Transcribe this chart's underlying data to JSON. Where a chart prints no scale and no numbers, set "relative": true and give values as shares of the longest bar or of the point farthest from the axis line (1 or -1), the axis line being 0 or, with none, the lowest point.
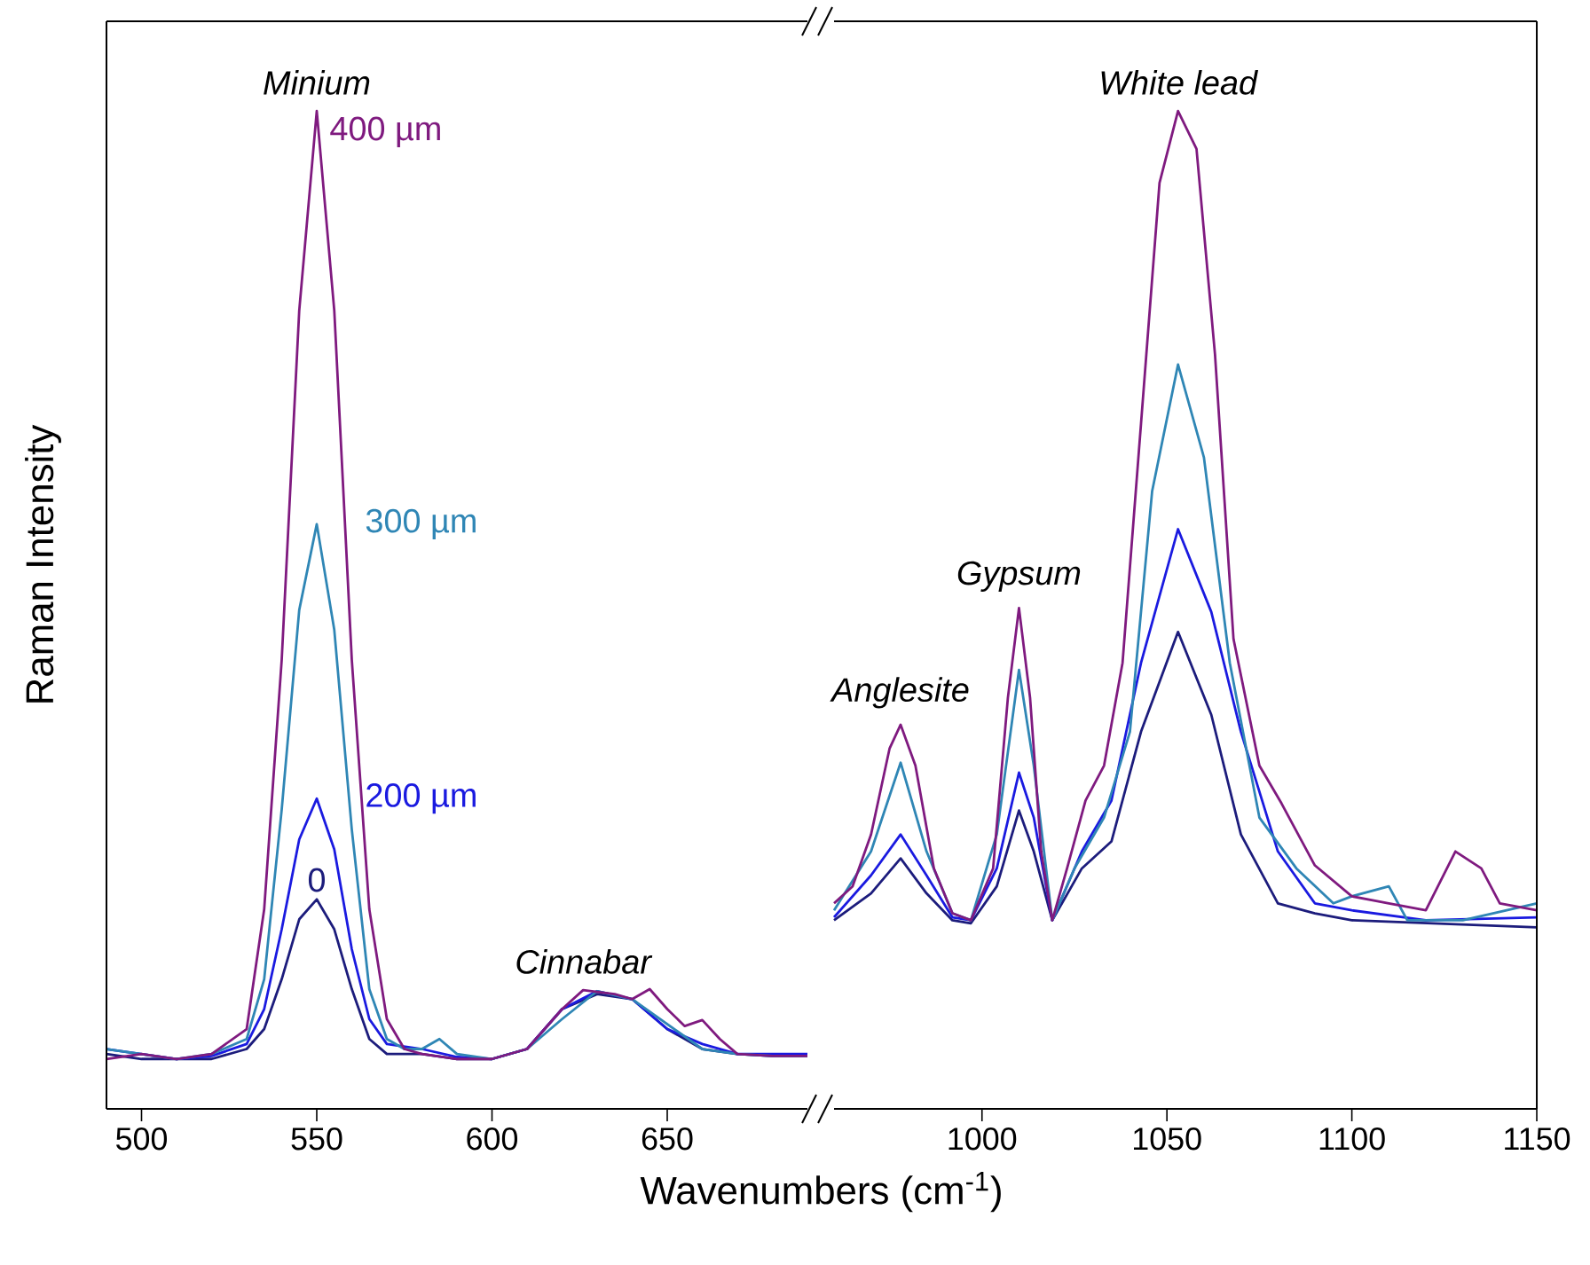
{
  "chart_data": [
    {
      "type": "line",
      "relative": true,
      "xlabel": "Wavenumbers (cm$^{-1}$)",
      "ylabel": "Raman Intensity",
      "xlim": [
        490,
        690
      ],
      "xticks": [
        500,
        550,
        600,
        650
      ],
      "annotations": [
        {
          "text": "Minium",
          "x": 550,
          "y": 1.0
        },
        {
          "text": "Cinnabar",
          "x": 626,
          "y": 0.119
        }
      ],
      "series": [
        {
          "name": "0",
          "color": "#1c1c7c",
          "x": [
            490,
            500,
            510,
            520,
            530,
            535,
            540,
            545,
            550,
            555,
            560,
            565,
            570,
            580,
            590,
            600,
            610,
            620,
            630,
            640,
            650,
            660,
            670,
            680,
            690
          ],
          "values": [
            0.055,
            0.05,
            0.05,
            0.05,
            0.06,
            0.08,
            0.13,
            0.19,
            0.21,
            0.18,
            0.12,
            0.07,
            0.055,
            0.055,
            0.05,
            0.05,
            0.06,
            0.1,
            0.115,
            0.11,
            0.08,
            0.06,
            0.055,
            0.053,
            0.053
          ]
        },
        {
          "name": "200 µm",
          "color": "#1a1ae0",
          "x": [
            490,
            500,
            510,
            520,
            530,
            535,
            540,
            545,
            550,
            555,
            560,
            565,
            570,
            580,
            590,
            600,
            610,
            620,
            630,
            640,
            650,
            660,
            670,
            680,
            690
          ],
          "values": [
            0.06,
            0.055,
            0.05,
            0.053,
            0.065,
            0.1,
            0.18,
            0.27,
            0.311,
            0.26,
            0.16,
            0.09,
            0.065,
            0.06,
            0.052,
            0.05,
            0.06,
            0.1,
            0.118,
            0.11,
            0.08,
            0.065,
            0.055,
            0.055,
            0.055
          ]
        },
        {
          "name": "300 µm",
          "color": "#2f86b5",
          "x": [
            490,
            500,
            510,
            520,
            530,
            535,
            540,
            545,
            550,
            555,
            560,
            565,
            570,
            575,
            580,
            585,
            590,
            600,
            610,
            620,
            630,
            640,
            650,
            660,
            670,
            680,
            690
          ],
          "values": [
            0.06,
            0.055,
            0.05,
            0.055,
            0.07,
            0.13,
            0.3,
            0.5,
            0.586,
            0.48,
            0.28,
            0.12,
            0.07,
            0.06,
            0.06,
            0.07,
            0.055,
            0.05,
            0.06,
            0.09,
            0.118,
            0.11,
            0.085,
            0.06,
            0.055,
            0.053,
            0.053
          ]
        },
        {
          "name": "400 µm",
          "color": "#7f1a7f",
          "x": [
            490,
            500,
            510,
            520,
            530,
            535,
            540,
            545,
            550,
            555,
            560,
            565,
            570,
            575,
            580,
            590,
            600,
            610,
            620,
            626,
            635,
            640,
            645,
            650,
            655,
            660,
            665,
            670,
            680,
            690
          ],
          "values": [
            0.05,
            0.055,
            0.05,
            0.055,
            0.08,
            0.2,
            0.45,
            0.8,
            1.0,
            0.8,
            0.45,
            0.2,
            0.09,
            0.06,
            0.055,
            0.05,
            0.05,
            0.06,
            0.1,
            0.119,
            0.115,
            0.11,
            0.12,
            0.1,
            0.083,
            0.089,
            0.07,
            0.055,
            0.053,
            0.053
          ]
        }
      ]
    },
    {
      "type": "line",
      "relative": true,
      "xlim": [
        960,
        1150
      ],
      "xticks": [
        1000,
        1050,
        1100,
        1150
      ],
      "annotations": [
        {
          "text": "Anglesite",
          "x": 978,
          "y": 0.385
        },
        {
          "text": "Gypsum",
          "x": 1010,
          "y": 0.502
        },
        {
          "text": "White lead",
          "x": 1053,
          "y": 1.0
        }
      ],
      "series": [
        {
          "color": "#1c1c7c",
          "x": [
            960,
            970,
            978,
            985,
            992,
            997,
            1004,
            1010,
            1014,
            1019,
            1027,
            1035,
            1043,
            1053,
            1062,
            1070,
            1080,
            1090,
            1100,
            1150
          ],
          "values": [
            0.189,
            0.216,
            0.251,
            0.216,
            0.189,
            0.186,
            0.223,
            0.299,
            0.258,
            0.189,
            0.241,
            0.268,
            0.378,
            0.478,
            0.395,
            0.275,
            0.206,
            0.196,
            0.189,
            0.182
          ]
        },
        {
          "color": "#1a1ae0",
          "x": [
            960,
            970,
            978,
            985,
            992,
            997,
            1004,
            1010,
            1014,
            1019,
            1027,
            1035,
            1043,
            1053,
            1062,
            1070,
            1080,
            1090,
            1100,
            1120,
            1150
          ],
          "values": [
            0.192,
            0.234,
            0.275,
            0.234,
            0.192,
            0.189,
            0.241,
            0.337,
            0.292,
            0.189,
            0.258,
            0.309,
            0.447,
            0.581,
            0.498,
            0.378,
            0.258,
            0.206,
            0.199,
            0.189,
            0.192
          ]
        },
        {
          "color": "#2f86b5",
          "x": [
            960,
            970,
            978,
            985,
            992,
            997,
            1004,
            1010,
            1014,
            1019,
            1025,
            1033,
            1040,
            1046,
            1053,
            1060,
            1067,
            1075,
            1085,
            1095,
            1100,
            1110,
            1115,
            1130,
            1150
          ],
          "values": [
            0.199,
            0.258,
            0.347,
            0.258,
            0.196,
            0.189,
            0.275,
            0.44,
            0.344,
            0.189,
            0.241,
            0.292,
            0.378,
            0.619,
            0.746,
            0.653,
            0.447,
            0.292,
            0.241,
            0.206,
            0.213,
            0.223,
            0.189,
            0.189,
            0.206
          ]
        },
        {
          "color": "#7f1a7f",
          "x": [
            960,
            965,
            970,
            975,
            978,
            982,
            987,
            992,
            997,
            1003,
            1007,
            1010,
            1013,
            1016,
            1019,
            1023,
            1028,
            1033,
            1038,
            1043,
            1048,
            1053,
            1058,
            1063,
            1068,
            1075,
            1081,
            1090,
            1100,
            1110,
            1120,
            1128,
            1135,
            1140,
            1150
          ],
          "values": [
            0.206,
            0.223,
            0.275,
            0.361,
            0.385,
            0.344,
            0.241,
            0.196,
            0.189,
            0.241,
            0.412,
            0.502,
            0.412,
            0.258,
            0.189,
            0.241,
            0.309,
            0.344,
            0.447,
            0.687,
            0.928,
            1.0,
            0.962,
            0.756,
            0.471,
            0.344,
            0.306,
            0.244,
            0.213,
            0.206,
            0.199,
            0.258,
            0.241,
            0.206,
            0.199
          ]
        }
      ]
    }
  ]
}
